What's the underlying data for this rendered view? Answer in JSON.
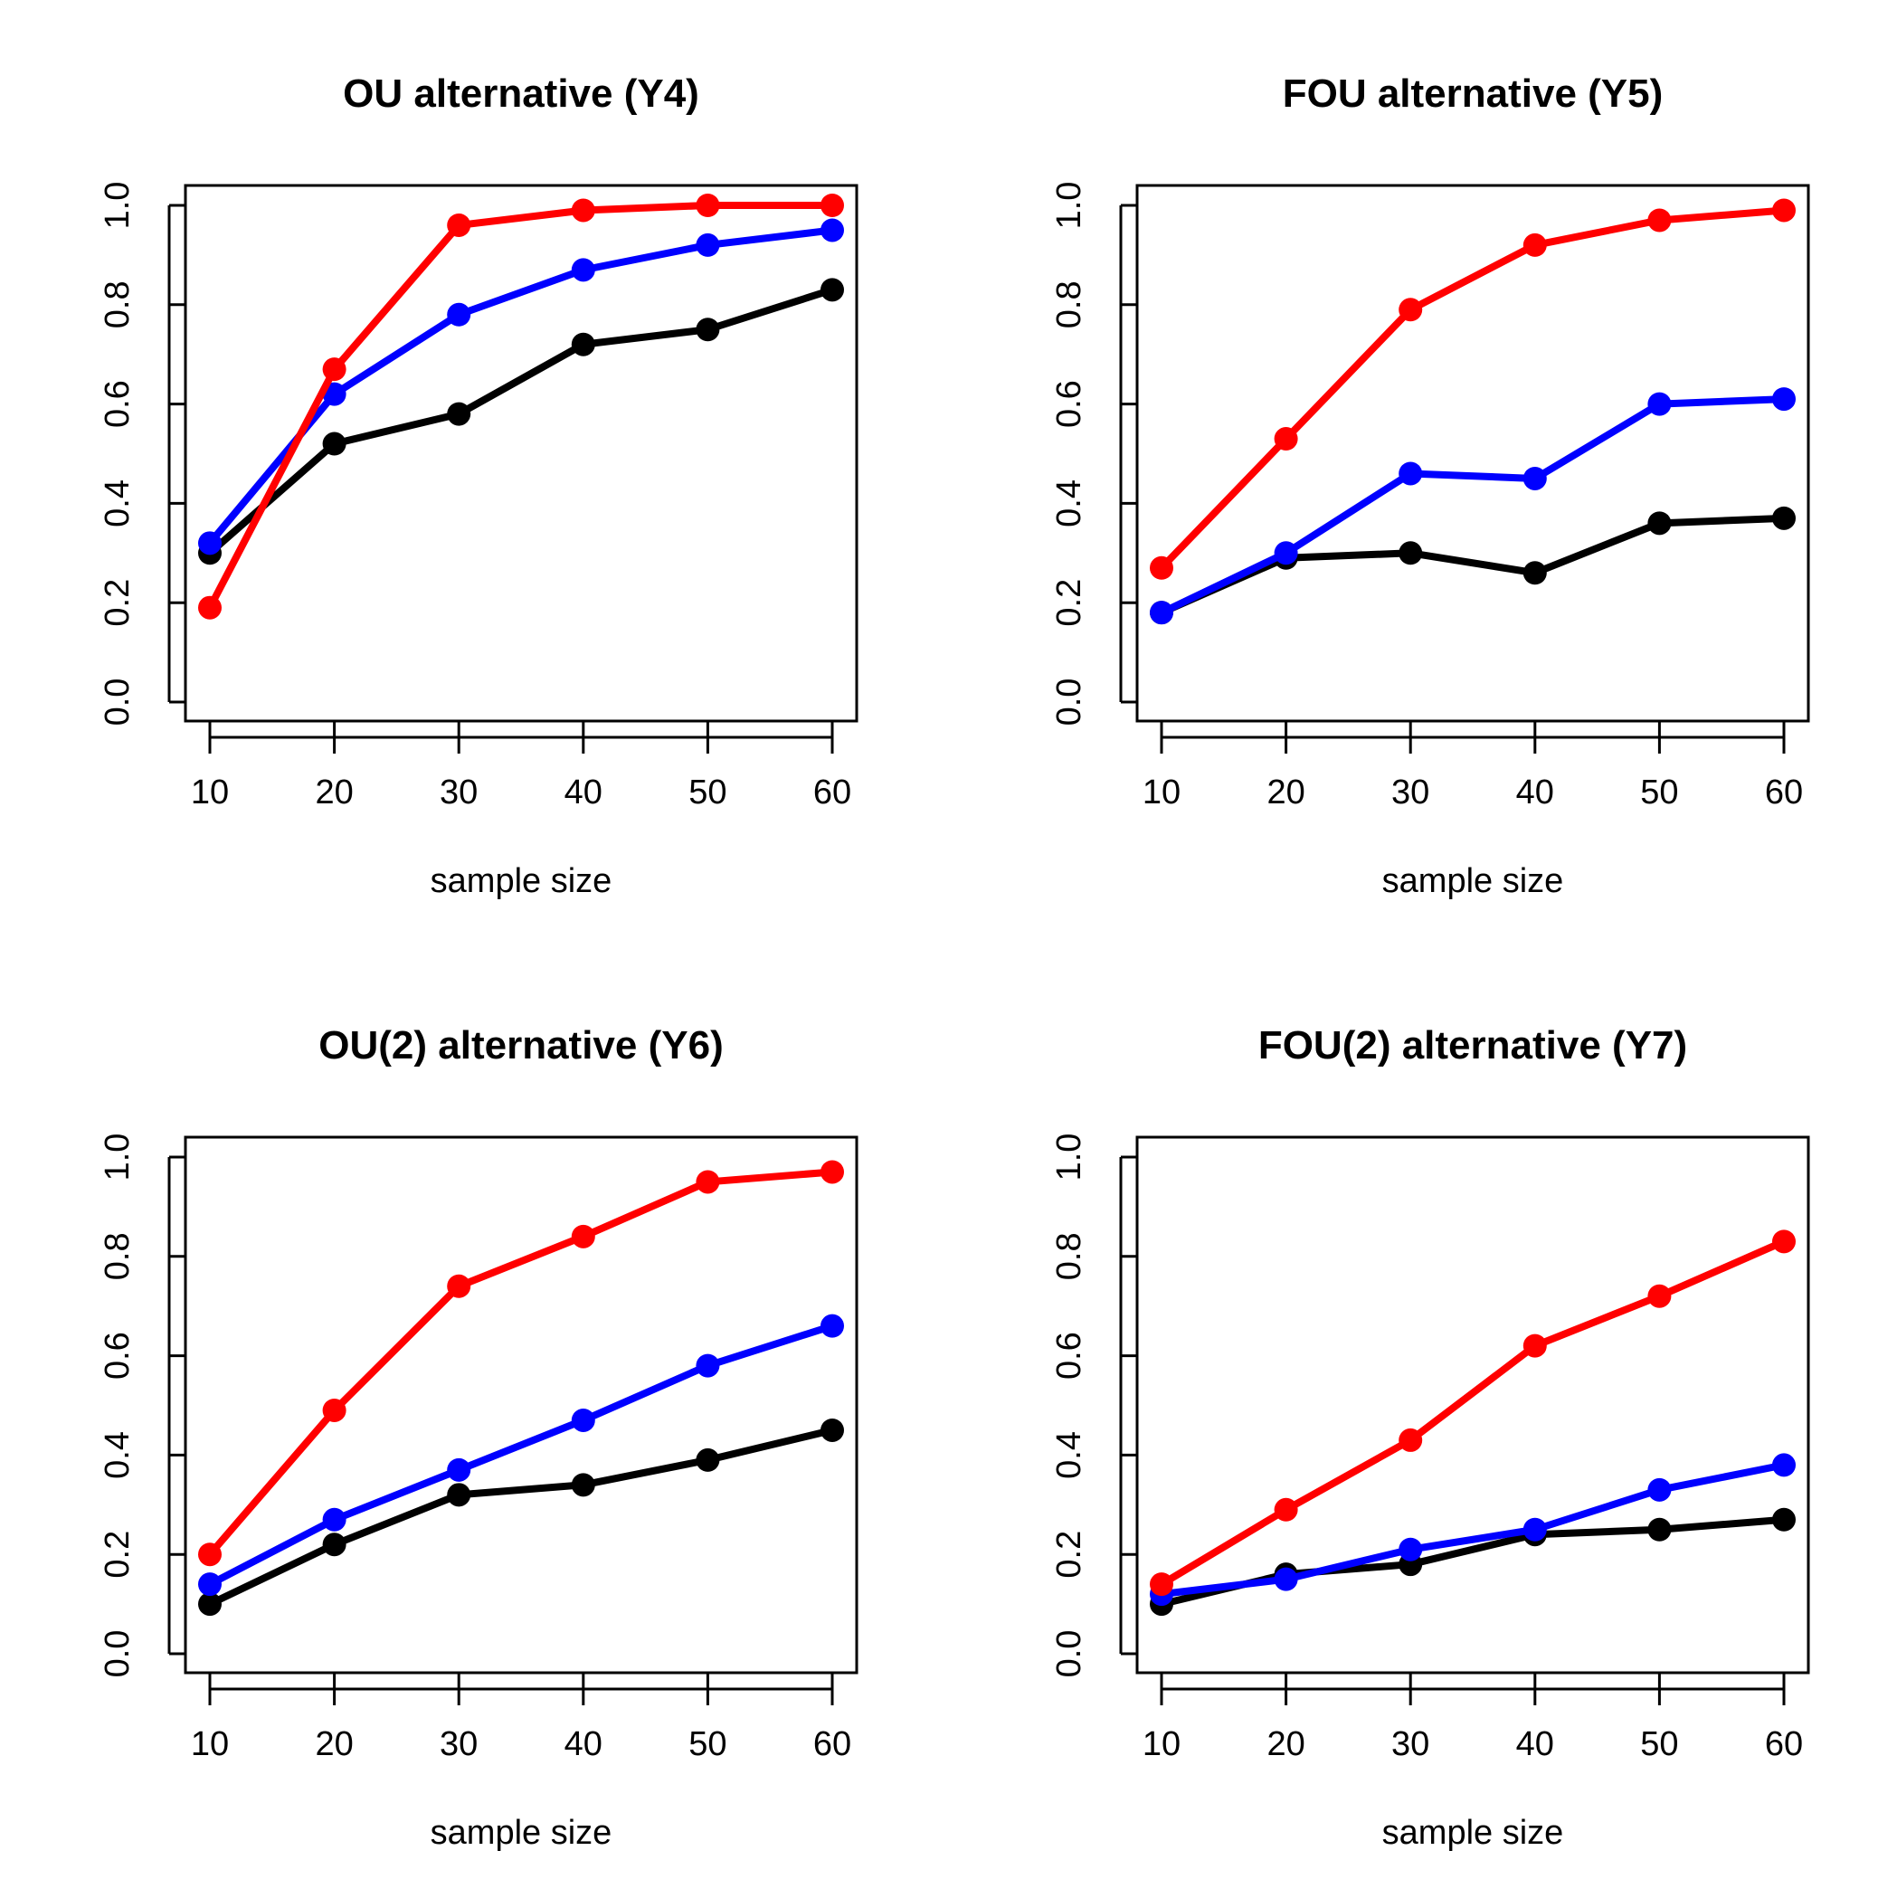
{
  "figure": {
    "background": "#ffffff"
  },
  "chart_data": [
    {
      "type": "line",
      "title": "OU alternative (Y4)",
      "xlabel": "sample size",
      "ylabel": "",
      "x": [
        10,
        20,
        30,
        40,
        50,
        60
      ],
      "xticks": [
        "10",
        "20",
        "30",
        "40",
        "50",
        "60"
      ],
      "yticks": [
        "0.0",
        "0.2",
        "0.4",
        "0.6",
        "0.8",
        "1.0"
      ],
      "ylim": [
        0,
        1
      ],
      "series": [
        {
          "name": "black",
          "color": "#000000",
          "values": [
            0.3,
            0.52,
            0.58,
            0.72,
            0.75,
            0.83
          ]
        },
        {
          "name": "blue",
          "color": "#0000ff",
          "values": [
            0.32,
            0.62,
            0.78,
            0.87,
            0.92,
            0.95
          ]
        },
        {
          "name": "red",
          "color": "#ff0000",
          "values": [
            0.19,
            0.67,
            0.96,
            0.99,
            1.0,
            1.0
          ]
        }
      ]
    },
    {
      "type": "line",
      "title": "FOU alternative (Y5)",
      "xlabel": "sample size",
      "ylabel": "",
      "x": [
        10,
        20,
        30,
        40,
        50,
        60
      ],
      "xticks": [
        "10",
        "20",
        "30",
        "40",
        "50",
        "60"
      ],
      "yticks": [
        "0.0",
        "0.2",
        "0.4",
        "0.6",
        "0.8",
        "1.0"
      ],
      "ylim": [
        0,
        1
      ],
      "series": [
        {
          "name": "black",
          "color": "#000000",
          "values": [
            0.18,
            0.29,
            0.3,
            0.26,
            0.36,
            0.37
          ]
        },
        {
          "name": "blue",
          "color": "#0000ff",
          "values": [
            0.18,
            0.3,
            0.46,
            0.45,
            0.6,
            0.61
          ]
        },
        {
          "name": "red",
          "color": "#ff0000",
          "values": [
            0.27,
            0.53,
            0.79,
            0.92,
            0.97,
            0.99
          ]
        }
      ]
    },
    {
      "type": "line",
      "title": "OU(2) alternative (Y6)",
      "xlabel": "sample size",
      "ylabel": "",
      "x": [
        10,
        20,
        30,
        40,
        50,
        60
      ],
      "xticks": [
        "10",
        "20",
        "30",
        "40",
        "50",
        "60"
      ],
      "yticks": [
        "0.0",
        "0.2",
        "0.4",
        "0.6",
        "0.8",
        "1.0"
      ],
      "ylim": [
        0,
        1
      ],
      "series": [
        {
          "name": "black",
          "color": "#000000",
          "values": [
            0.1,
            0.22,
            0.32,
            0.34,
            0.39,
            0.45
          ]
        },
        {
          "name": "blue",
          "color": "#0000ff",
          "values": [
            0.14,
            0.27,
            0.37,
            0.47,
            0.58,
            0.66
          ]
        },
        {
          "name": "red",
          "color": "#ff0000",
          "values": [
            0.2,
            0.49,
            0.74,
            0.84,
            0.95,
            0.97
          ]
        }
      ]
    },
    {
      "type": "line",
      "title": "FOU(2) alternative (Y7)",
      "xlabel": "sample size",
      "ylabel": "",
      "x": [
        10,
        20,
        30,
        40,
        50,
        60
      ],
      "xticks": [
        "10",
        "20",
        "30",
        "40",
        "50",
        "60"
      ],
      "yticks": [
        "0.0",
        "0.2",
        "0.4",
        "0.6",
        "0.8",
        "1.0"
      ],
      "ylim": [
        0,
        1
      ],
      "series": [
        {
          "name": "black",
          "color": "#000000",
          "values": [
            0.1,
            0.16,
            0.18,
            0.24,
            0.25,
            0.27
          ]
        },
        {
          "name": "blue",
          "color": "#0000ff",
          "values": [
            0.12,
            0.15,
            0.21,
            0.25,
            0.33,
            0.38
          ]
        },
        {
          "name": "red",
          "color": "#ff0000",
          "values": [
            0.14,
            0.29,
            0.43,
            0.62,
            0.72,
            0.83
          ]
        }
      ]
    }
  ]
}
